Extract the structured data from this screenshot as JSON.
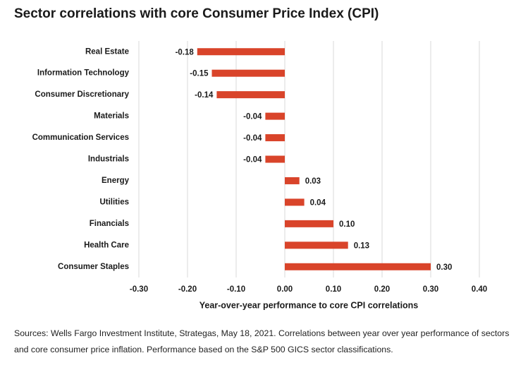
{
  "chart_data": {
    "type": "bar",
    "orientation": "horizontal",
    "title": "Sector correlations with core Consumer Price Index (CPI)",
    "categories": [
      "Real Estate",
      "Information Technology",
      "Consumer Discretionary",
      "Materials",
      "Communication Services",
      "Industrials",
      "Energy",
      "Utilities",
      "Financials",
      "Health Care",
      "Consumer Staples"
    ],
    "values": [
      -0.18,
      -0.15,
      -0.14,
      -0.04,
      -0.04,
      -0.04,
      0.03,
      0.04,
      0.1,
      0.13,
      0.3
    ],
    "value_labels": [
      "-0.18",
      "-0.15",
      "-0.14",
      "-0.04",
      "-0.04",
      "-0.04",
      "0.03",
      "0.04",
      "0.10",
      "0.13",
      "0.30"
    ],
    "color": "#d9442a",
    "xlim": [
      -0.3,
      0.4
    ],
    "xticks": [
      {
        "value": -0.3,
        "label": "-0.30"
      },
      {
        "value": -0.2,
        "label": "-0.20"
      },
      {
        "value": -0.1,
        "label": "-0.10"
      },
      {
        "value": 0,
        "label": "0.00"
      },
      {
        "value": 0.1,
        "label": "0.10"
      },
      {
        "value": 0.2,
        "label": "0.20"
      },
      {
        "value": 0.3,
        "label": "0.30"
      },
      {
        "value": 0.4,
        "label": "0.40"
      }
    ],
    "grid": true,
    "xlabel": "Year-over-year performance to core CPI correlations",
    "source": "Sources: Wells Fargo Investment Institute, Strategas, May 18, 2021. Correlations between year over year performance of sectors and core consumer price inflation. Performance based on the S&P 500 GICS sector classifications."
  }
}
